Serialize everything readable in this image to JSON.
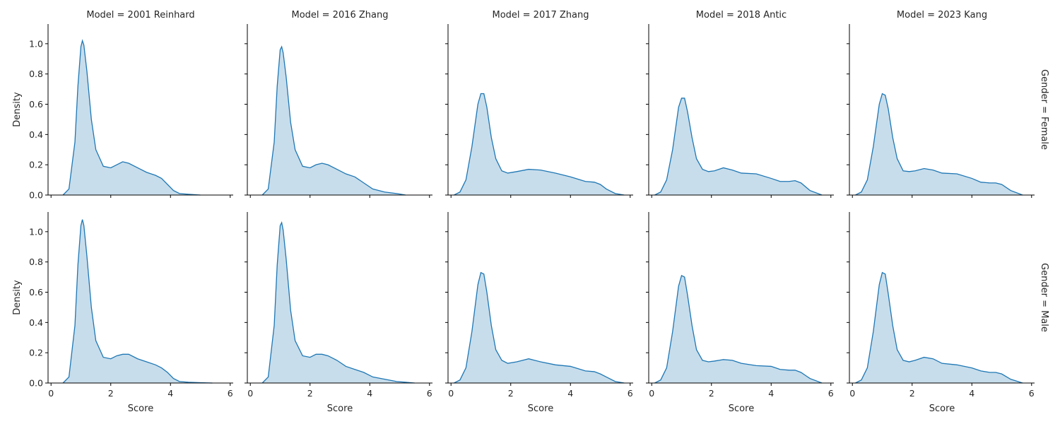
{
  "chart_data": {
    "type": "area",
    "col_label_prefix": "Model = ",
    "row_label_prefix": "Gender = ",
    "col_values": [
      "2001 Reinhard",
      "2016 Zhang",
      "2017 Zhang",
      "2018 Antic",
      "2023 Kang"
    ],
    "row_values": [
      "Female",
      "Male"
    ],
    "xlabel": "Score",
    "ylabel": "Density",
    "xlim": [
      -0.1,
      6.1
    ],
    "ylim": [
      0,
      1.13
    ],
    "xticks": [
      0,
      2,
      4,
      6
    ],
    "yticks": [
      0.0,
      0.2,
      0.4,
      0.6,
      0.8,
      1.0
    ],
    "line_color": "#1f77b4",
    "fill_color": "#1f77b4",
    "fill_opacity": 0.25,
    "panels": [
      {
        "row": "Female",
        "col": "2001 Reinhard",
        "x": [
          0.4,
          0.6,
          0.8,
          0.9,
          1.0,
          1.05,
          1.1,
          1.2,
          1.35,
          1.5,
          1.75,
          2.0,
          2.2,
          2.4,
          2.6,
          2.9,
          3.2,
          3.5,
          3.7,
          3.9,
          4.1,
          4.3,
          4.6,
          5.0
        ],
        "y": [
          0.0,
          0.04,
          0.35,
          0.72,
          0.98,
          1.02,
          0.99,
          0.82,
          0.5,
          0.3,
          0.19,
          0.18,
          0.2,
          0.22,
          0.21,
          0.18,
          0.15,
          0.13,
          0.11,
          0.07,
          0.03,
          0.01,
          0.005,
          0.0
        ]
      },
      {
        "row": "Female",
        "col": "2016 Zhang",
        "x": [
          0.4,
          0.6,
          0.8,
          0.9,
          1.0,
          1.05,
          1.1,
          1.2,
          1.35,
          1.5,
          1.75,
          2.0,
          2.2,
          2.4,
          2.6,
          2.9,
          3.2,
          3.5,
          3.8,
          4.1,
          4.5,
          4.9,
          5.2
        ],
        "y": [
          0.0,
          0.04,
          0.35,
          0.72,
          0.96,
          0.98,
          0.94,
          0.78,
          0.48,
          0.3,
          0.19,
          0.18,
          0.2,
          0.21,
          0.2,
          0.17,
          0.14,
          0.12,
          0.08,
          0.04,
          0.02,
          0.01,
          0.0
        ]
      },
      {
        "row": "Female",
        "col": "2017 Zhang",
        "x": [
          0.1,
          0.3,
          0.5,
          0.7,
          0.9,
          1.0,
          1.1,
          1.2,
          1.35,
          1.5,
          1.7,
          1.9,
          2.2,
          2.6,
          3.0,
          3.5,
          4.0,
          4.5,
          4.8,
          5.0,
          5.2,
          5.5,
          5.8
        ],
        "y": [
          0.0,
          0.02,
          0.1,
          0.32,
          0.6,
          0.67,
          0.67,
          0.58,
          0.38,
          0.24,
          0.16,
          0.145,
          0.155,
          0.17,
          0.165,
          0.145,
          0.12,
          0.09,
          0.085,
          0.07,
          0.04,
          0.01,
          0.0
        ]
      },
      {
        "row": "Female",
        "col": "2018 Antic",
        "x": [
          0.1,
          0.3,
          0.5,
          0.7,
          0.9,
          1.0,
          1.1,
          1.2,
          1.35,
          1.5,
          1.7,
          1.9,
          2.1,
          2.4,
          2.7,
          3.0,
          3.5,
          4.0,
          4.3,
          4.6,
          4.8,
          5.0,
          5.3,
          5.7
        ],
        "y": [
          0.0,
          0.02,
          0.1,
          0.3,
          0.58,
          0.64,
          0.64,
          0.55,
          0.38,
          0.24,
          0.17,
          0.155,
          0.16,
          0.18,
          0.165,
          0.145,
          0.14,
          0.11,
          0.09,
          0.09,
          0.095,
          0.08,
          0.03,
          0.0
        ]
      },
      {
        "row": "Female",
        "col": "2023 Kang",
        "x": [
          0.1,
          0.3,
          0.5,
          0.7,
          0.9,
          1.0,
          1.1,
          1.2,
          1.35,
          1.5,
          1.7,
          1.9,
          2.1,
          2.4,
          2.7,
          3.0,
          3.5,
          4.0,
          4.3,
          4.6,
          4.8,
          5.0,
          5.3,
          5.7
        ],
        "y": [
          0.0,
          0.02,
          0.1,
          0.32,
          0.6,
          0.67,
          0.66,
          0.57,
          0.38,
          0.24,
          0.16,
          0.155,
          0.16,
          0.175,
          0.165,
          0.145,
          0.14,
          0.11,
          0.085,
          0.08,
          0.08,
          0.07,
          0.03,
          0.0
        ]
      },
      {
        "row": "Male",
        "col": "2001 Reinhard",
        "x": [
          0.4,
          0.6,
          0.8,
          0.9,
          1.0,
          1.05,
          1.1,
          1.2,
          1.35,
          1.5,
          1.75,
          2.0,
          2.2,
          2.4,
          2.6,
          2.9,
          3.2,
          3.5,
          3.7,
          3.9,
          4.1,
          4.3,
          4.6,
          5.0,
          5.4
        ],
        "y": [
          0.0,
          0.04,
          0.38,
          0.78,
          1.04,
          1.08,
          1.04,
          0.84,
          0.5,
          0.28,
          0.17,
          0.16,
          0.18,
          0.19,
          0.19,
          0.16,
          0.14,
          0.12,
          0.1,
          0.07,
          0.03,
          0.01,
          0.005,
          0.002,
          0.0
        ]
      },
      {
        "row": "Male",
        "col": "2016 Zhang",
        "x": [
          0.4,
          0.6,
          0.8,
          0.9,
          1.0,
          1.05,
          1.1,
          1.2,
          1.35,
          1.5,
          1.75,
          2.0,
          2.2,
          2.4,
          2.6,
          2.9,
          3.2,
          3.5,
          3.8,
          4.1,
          4.5,
          4.9,
          5.2,
          5.5
        ],
        "y": [
          0.0,
          0.04,
          0.38,
          0.78,
          1.04,
          1.06,
          1.01,
          0.82,
          0.48,
          0.28,
          0.18,
          0.17,
          0.19,
          0.19,
          0.18,
          0.15,
          0.11,
          0.09,
          0.07,
          0.04,
          0.025,
          0.01,
          0.005,
          0.0
        ]
      },
      {
        "row": "Male",
        "col": "2017 Zhang",
        "x": [
          0.1,
          0.3,
          0.5,
          0.7,
          0.9,
          1.0,
          1.1,
          1.2,
          1.35,
          1.5,
          1.7,
          1.9,
          2.2,
          2.6,
          3.0,
          3.5,
          4.0,
          4.5,
          4.8,
          5.0,
          5.2,
          5.5,
          5.8
        ],
        "y": [
          0.0,
          0.02,
          0.1,
          0.34,
          0.65,
          0.73,
          0.72,
          0.6,
          0.38,
          0.22,
          0.15,
          0.13,
          0.14,
          0.16,
          0.14,
          0.12,
          0.11,
          0.08,
          0.075,
          0.06,
          0.04,
          0.01,
          0.0
        ]
      },
      {
        "row": "Male",
        "col": "2018 Antic",
        "x": [
          0.1,
          0.3,
          0.5,
          0.7,
          0.9,
          1.0,
          1.1,
          1.2,
          1.35,
          1.5,
          1.7,
          1.9,
          2.1,
          2.4,
          2.7,
          3.0,
          3.5,
          4.0,
          4.3,
          4.6,
          4.8,
          5.0,
          5.3,
          5.7
        ],
        "y": [
          0.0,
          0.02,
          0.1,
          0.34,
          0.64,
          0.71,
          0.7,
          0.58,
          0.38,
          0.22,
          0.15,
          0.14,
          0.145,
          0.155,
          0.15,
          0.13,
          0.115,
          0.11,
          0.09,
          0.085,
          0.085,
          0.07,
          0.03,
          0.0
        ]
      },
      {
        "row": "Male",
        "col": "2023 Kang",
        "x": [
          0.1,
          0.3,
          0.5,
          0.7,
          0.9,
          1.0,
          1.1,
          1.2,
          1.35,
          1.5,
          1.7,
          1.9,
          2.1,
          2.4,
          2.7,
          3.0,
          3.5,
          4.0,
          4.3,
          4.6,
          4.8,
          5.0,
          5.3,
          5.7
        ],
        "y": [
          0.0,
          0.02,
          0.1,
          0.34,
          0.65,
          0.73,
          0.72,
          0.59,
          0.38,
          0.22,
          0.15,
          0.14,
          0.15,
          0.17,
          0.16,
          0.13,
          0.12,
          0.1,
          0.08,
          0.07,
          0.07,
          0.06,
          0.025,
          0.0
        ]
      }
    ]
  }
}
